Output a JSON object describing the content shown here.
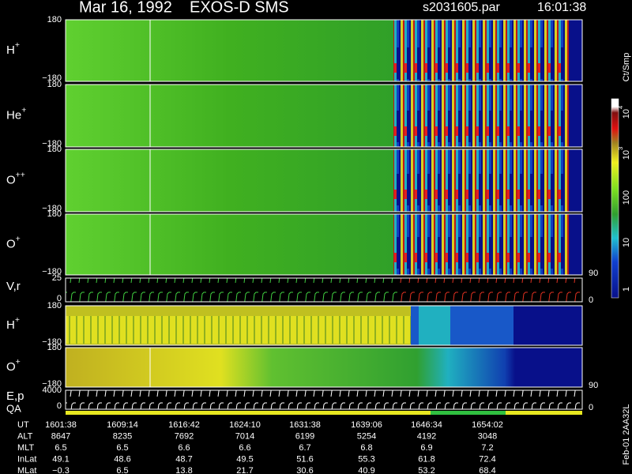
{
  "header": {
    "date": "Mar 16, 1992",
    "instrument": "EXOS-D SMS",
    "file": "s2031605.par",
    "time": "16:01:38"
  },
  "panels": [
    {
      "label": "H",
      "sup": "+",
      "top": "180",
      "bottom": "−180"
    },
    {
      "label": "He",
      "sup": "+",
      "top": "180",
      "bottom": "−180"
    },
    {
      "label": "O",
      "sup": "++",
      "top": "180",
      "bottom": "−180"
    },
    {
      "label": "O",
      "sup": "+",
      "top": "180",
      "bottom": "−180",
      "right_bottom": "90"
    },
    {
      "label": "V,r",
      "top": "25",
      "bottom": "0",
      "right_bottom": "0"
    },
    {
      "label": "H",
      "sup": "+",
      "top": "180",
      "bottom": "−180"
    },
    {
      "label": "O",
      "sup": "+",
      "top": "180",
      "bottom": "−180",
      "right_bottom": "90"
    },
    {
      "label": "E,p",
      "top": "4000",
      "bottom": "0",
      "right_bottom": "0"
    }
  ],
  "qa_label": "QA",
  "colorbar": {
    "unit": "Ct/Smp",
    "labels": [
      {
        "base": "10",
        "exp": "4"
      },
      {
        "base": "10",
        "exp": "3"
      },
      {
        "base": "100"
      },
      {
        "base": "10"
      },
      {
        "base": "1"
      }
    ]
  },
  "ephemeris": [
    {
      "name": "UT",
      "values": [
        "1601:38",
        "1609:14",
        "1616:42",
        "1624:10",
        "1631:38",
        "1639:06",
        "1646:34",
        "1654:02"
      ]
    },
    {
      "name": "ALT",
      "values": [
        "8647",
        "8235",
        "7692",
        "7014",
        "6199",
        "5254",
        "4192",
        "3048"
      ]
    },
    {
      "name": "MLT",
      "values": [
        "6.5",
        "6.5",
        "6.6",
        "6.6",
        "6.7",
        "6.8",
        "6.9",
        "7.2"
      ]
    },
    {
      "name": "InLat",
      "values": [
        "49.1",
        "48.6",
        "48.7",
        "49.5",
        "51.6",
        "55.3",
        "61.8",
        "72.4"
      ]
    },
    {
      "name": "MLat",
      "values": [
        "−0.3",
        "6.5",
        "13.8",
        "21.7",
        "30.6",
        "40.9",
        "53.2",
        "68.4"
      ]
    }
  ],
  "footer_id": "Feb-01 2AA32L"
}
